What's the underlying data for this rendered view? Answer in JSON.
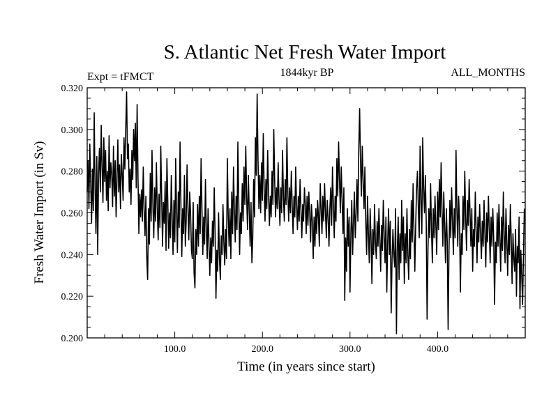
{
  "chart_data": {
    "type": "line",
    "title": "S. Atlantic Net Fresh Water Import",
    "subtitle_left": "Expt = tFMCT",
    "subtitle_center": "1844kyr BP",
    "subtitle_right": "ALL_MONTHS",
    "xlabel": "Time (in years since start)",
    "ylabel": "Fresh Water Import (in Sv)",
    "xlim": [
      0,
      500
    ],
    "ylim": [
      0.2,
      0.32
    ],
    "xticks": [
      100,
      200,
      300,
      400
    ],
    "xtick_labels": [
      "100.0",
      "200.0",
      "300.0",
      "400.0"
    ],
    "yticks": [
      0.2,
      0.22,
      0.24,
      0.26,
      0.28,
      0.3,
      0.32
    ],
    "ytick_labels": [
      "0.200",
      "0.220",
      "0.240",
      "0.260",
      "0.280",
      "0.300",
      "0.320"
    ],
    "series": [
      {
        "name": "fresh water import",
        "color": "#000000",
        "x_start": 0,
        "x_step": 1,
        "values": [
          0.27,
          0.285,
          0.262,
          0.293,
          0.275,
          0.255,
          0.281,
          0.261,
          0.308,
          0.272,
          0.25,
          0.287,
          0.24,
          0.279,
          0.291,
          0.27,
          0.302,
          0.282,
          0.265,
          0.296,
          0.275,
          0.29,
          0.266,
          0.28,
          0.261,
          0.297,
          0.272,
          0.284,
          0.279,
          0.263,
          0.292,
          0.268,
          0.285,
          0.258,
          0.276,
          0.295,
          0.27,
          0.283,
          0.262,
          0.288,
          0.278,
          0.266,
          0.296,
          0.281,
          0.3,
          0.318,
          0.286,
          0.293,
          0.27,
          0.281,
          0.264,
          0.29,
          0.276,
          0.3,
          0.285,
          0.303,
          0.272,
          0.312,
          0.277,
          0.25,
          0.269,
          0.258,
          0.271,
          0.256,
          0.282,
          0.262,
          0.249,
          0.268,
          0.239,
          0.228,
          0.262,
          0.245,
          0.279,
          0.256,
          0.29,
          0.264,
          0.248,
          0.272,
          0.256,
          0.284,
          0.262,
          0.247,
          0.269,
          0.253,
          0.292,
          0.268,
          0.244,
          0.265,
          0.255,
          0.275,
          0.242,
          0.286,
          0.266,
          0.243,
          0.26,
          0.248,
          0.278,
          0.258,
          0.24,
          0.266,
          0.246,
          0.286,
          0.262,
          0.241,
          0.27,
          0.253,
          0.294,
          0.264,
          0.239,
          0.262,
          0.25,
          0.278,
          0.244,
          0.256,
          0.283,
          0.262,
          0.247,
          0.27,
          0.26,
          0.242,
          0.238,
          0.265,
          0.231,
          0.224,
          0.252,
          0.24,
          0.264,
          0.244,
          0.268,
          0.25,
          0.286,
          0.262,
          0.24,
          0.258,
          0.245,
          0.276,
          0.252,
          0.238,
          0.262,
          0.246,
          0.23,
          0.248,
          0.236,
          0.256,
          0.244,
          0.272,
          0.25,
          0.219,
          0.242,
          0.232,
          0.26,
          0.238,
          0.228,
          0.249,
          0.24,
          0.264,
          0.246,
          0.235,
          0.252,
          0.238,
          0.286,
          0.258,
          0.244,
          0.262,
          0.238,
          0.27,
          0.25,
          0.282,
          0.262,
          0.246,
          0.268,
          0.252,
          0.294,
          0.266,
          0.24,
          0.26,
          0.25,
          0.274,
          0.256,
          0.282,
          0.264,
          0.292,
          0.268,
          0.252,
          0.278,
          0.26,
          0.244,
          0.265,
          0.236,
          0.248,
          0.276,
          0.258,
          0.296,
          0.278,
          0.317,
          0.286,
          0.262,
          0.278,
          0.26,
          0.284,
          0.266,
          0.298,
          0.272,
          0.256,
          0.276,
          0.262,
          0.29,
          0.27,
          0.254,
          0.268,
          0.258,
          0.28,
          0.264,
          0.3,
          0.276,
          0.258,
          0.272,
          0.262,
          0.284,
          0.266,
          0.254,
          0.272,
          0.26,
          0.29,
          0.268,
          0.256,
          0.276,
          0.264,
          0.296,
          0.27,
          0.256,
          0.272,
          0.26,
          0.28,
          0.264,
          0.25,
          0.268,
          0.258,
          0.282,
          0.264,
          0.252,
          0.268,
          0.256,
          0.276,
          0.262,
          0.248,
          0.264,
          0.256,
          0.272,
          0.264,
          0.25,
          0.268,
          0.254,
          0.27,
          0.26,
          0.246,
          0.264,
          0.256,
          0.238,
          0.258,
          0.244,
          0.262,
          0.25,
          0.266,
          0.258,
          0.244,
          0.274,
          0.262,
          0.25,
          0.268,
          0.256,
          0.274,
          0.26,
          0.248,
          0.266,
          0.258,
          0.244,
          0.262,
          0.272,
          0.254,
          0.282,
          0.264,
          0.248,
          0.268,
          0.256,
          0.286,
          0.268,
          0.294,
          0.276,
          0.26,
          0.282,
          0.266,
          0.25,
          0.272,
          0.218,
          0.248,
          0.232,
          0.262,
          0.244,
          0.258,
          0.222,
          0.25,
          0.266,
          0.24,
          0.256,
          0.27,
          0.248,
          0.26,
          0.276,
          0.256,
          0.29,
          0.31,
          0.284,
          0.268,
          0.292,
          0.276,
          0.262,
          0.282,
          0.256,
          0.24,
          0.268,
          0.25,
          0.236,
          0.262,
          0.248,
          0.226,
          0.252,
          0.24,
          0.264,
          0.246,
          0.238,
          0.256,
          0.244,
          0.262,
          0.248,
          0.232,
          0.254,
          0.242,
          0.266,
          0.25,
          0.236,
          0.258,
          0.222,
          0.246,
          0.262,
          0.24,
          0.256,
          0.212,
          0.238,
          0.252,
          0.24,
          0.234,
          0.262,
          0.202,
          0.242,
          0.258,
          0.228,
          0.25,
          0.236,
          0.266,
          0.242,
          0.258,
          0.226,
          0.25,
          0.236,
          0.262,
          0.24,
          0.228,
          0.252,
          0.238,
          0.266,
          0.246,
          0.274,
          0.252,
          0.232,
          0.254,
          0.272,
          0.28,
          0.262,
          0.248,
          0.292,
          0.266,
          0.25,
          0.296,
          0.272,
          0.26,
          0.278,
          0.256,
          0.209,
          0.242,
          0.262,
          0.248,
          0.274,
          0.252,
          0.236,
          0.262,
          0.248,
          0.268,
          0.254,
          0.24,
          0.27,
          0.252,
          0.276,
          0.258,
          0.284,
          0.262,
          0.244,
          0.27,
          0.254,
          0.236,
          0.262,
          0.246,
          0.204,
          0.242,
          0.266,
          0.248,
          0.272,
          0.256,
          0.24,
          0.262,
          0.248,
          0.29,
          0.262,
          0.244,
          0.268,
          0.256,
          0.222,
          0.25,
          0.24,
          0.268,
          0.252,
          0.28,
          0.258,
          0.242,
          0.266,
          0.254,
          0.276,
          0.26,
          0.244,
          0.262,
          0.232,
          0.252,
          0.244,
          0.27,
          0.252,
          0.236,
          0.258,
          0.246,
          0.264,
          0.25,
          0.238,
          0.256,
          0.244,
          0.266,
          0.25,
          0.234,
          0.26,
          0.246,
          0.268,
          0.252,
          0.236,
          0.258,
          0.244,
          0.262,
          0.248,
          0.216,
          0.246,
          0.236,
          0.26,
          0.244,
          0.264,
          0.248,
          0.232,
          0.258,
          0.242,
          0.27,
          0.25,
          0.236,
          0.262,
          0.246,
          0.23,
          0.254,
          0.24,
          0.264,
          0.248,
          0.226,
          0.25,
          0.238,
          0.232,
          0.252,
          0.22,
          0.244,
          0.236,
          0.258,
          0.214,
          0.242,
          0.23,
          0.216,
          0.24,
          0.262
        ]
      }
    ]
  }
}
